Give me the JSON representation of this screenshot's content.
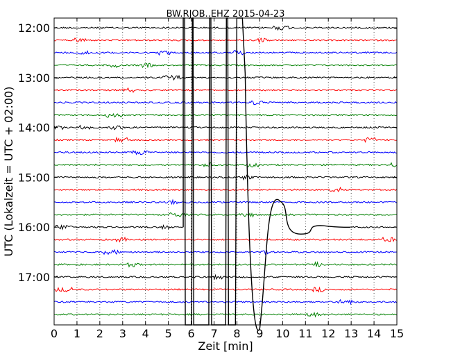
{
  "chart_data": {
    "type": "line",
    "title": "BW.RJOB..EHZ 2015-04-23",
    "xlabel": "Zeit  [min]",
    "ylabel": "UTC (Lokalzeit = UTC + 02:00)",
    "xlim": [
      0,
      15
    ],
    "x_ticks": [
      0,
      1,
      2,
      3,
      4,
      5,
      6,
      7,
      8,
      9,
      10,
      11,
      12,
      13,
      14,
      15
    ],
    "x_tick_labels": [
      "0",
      "1",
      "2",
      "3",
      "4",
      "5",
      "6",
      "7",
      "8",
      "9",
      "10",
      "11",
      "12",
      "13",
      "14",
      "15"
    ],
    "y_tick_labels": [
      "12:00",
      "13:00",
      "14:00",
      "15:00",
      "16:00",
      "17:00"
    ],
    "y_tick_rows": [
      0,
      4,
      8,
      12,
      16,
      20
    ],
    "trace_start_times": [
      "12:00",
      "12:15",
      "12:30",
      "12:45",
      "13:00",
      "13:15",
      "13:30",
      "13:45",
      "14:00",
      "14:15",
      "14:30",
      "14:45",
      "15:00",
      "15:15",
      "15:30",
      "15:45",
      "16:00",
      "16:15",
      "16:30",
      "16:45",
      "17:00",
      "17:15",
      "17:30",
      "17:45"
    ],
    "trace_colors": [
      "#000000",
      "#ff0000",
      "#0000ff",
      "#008000"
    ],
    "grid": "x-dotted",
    "event": {
      "row_index": 16,
      "onset_min": 5.65,
      "large_swings_min": [
        5.65,
        6.05,
        6.8,
        7.6,
        8.3,
        9.0
      ],
      "bump_peak_min": 9.9,
      "trough_min": 10.8,
      "secondary_bump_min": 11.8
    }
  }
}
